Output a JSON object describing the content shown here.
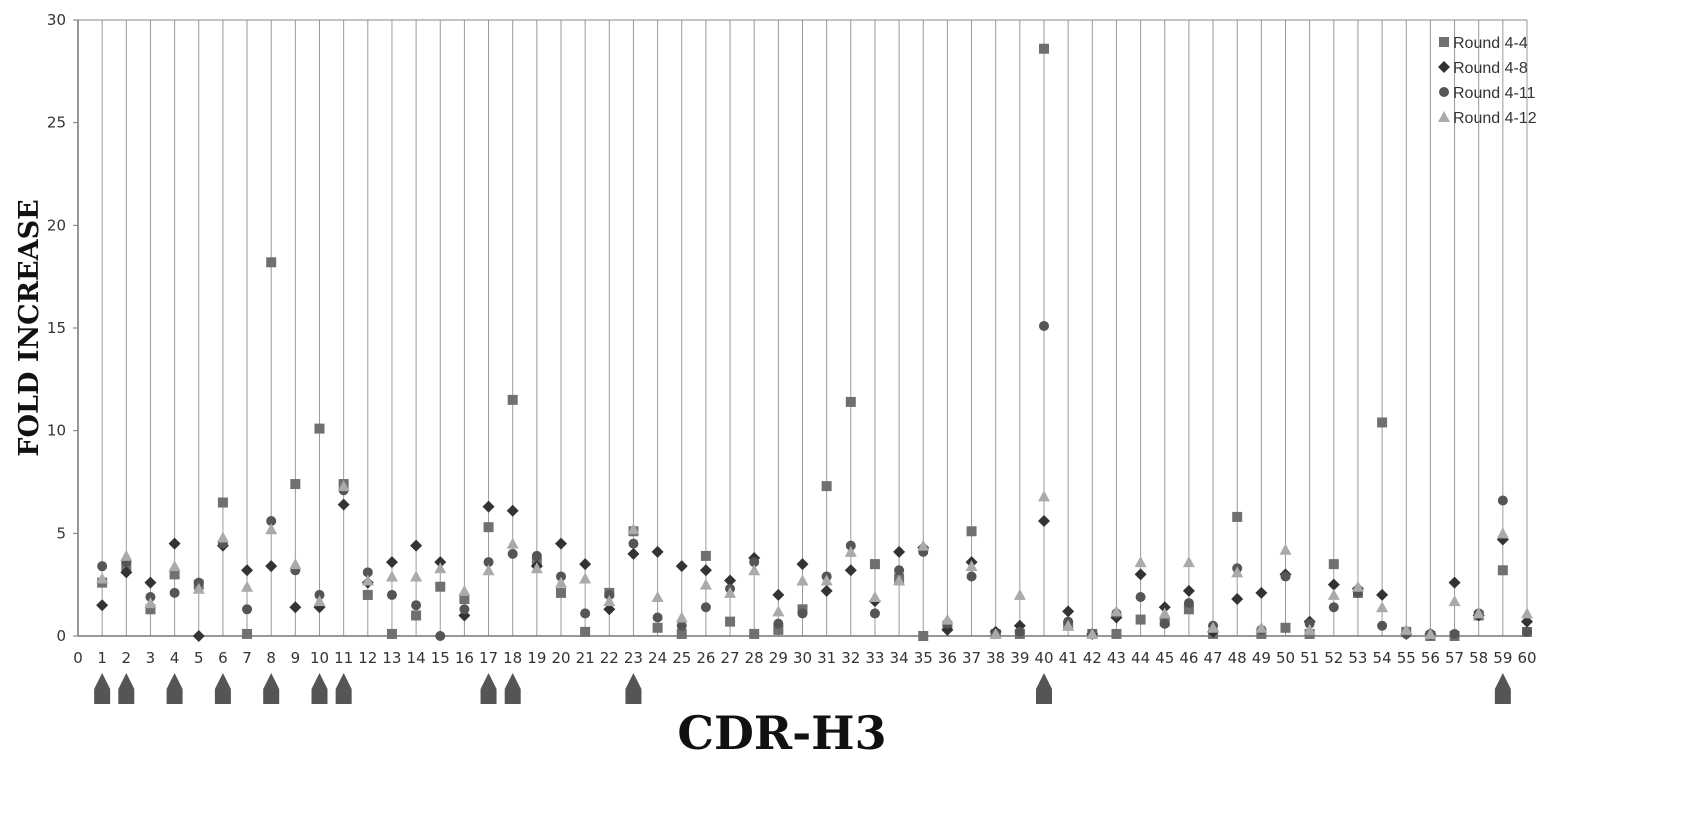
{
  "chart_data": {
    "type": "scatter",
    "xlabel": "CDR-H3",
    "ylabel": "FOLD INCREASE",
    "xlim": [
      0,
      60
    ],
    "ylim": [
      0,
      30
    ],
    "x_ticks": [
      0,
      1,
      2,
      3,
      4,
      5,
      6,
      7,
      8,
      9,
      10,
      11,
      12,
      13,
      14,
      15,
      16,
      17,
      18,
      19,
      20,
      21,
      22,
      23,
      24,
      25,
      26,
      27,
      28,
      29,
      30,
      31,
      32,
      33,
      34,
      35,
      36,
      37,
      38,
      39,
      40,
      41,
      42,
      43,
      44,
      45,
      46,
      47,
      48,
      49,
      50,
      51,
      52,
      53,
      54,
      55,
      56,
      57,
      58,
      59,
      60
    ],
    "y_ticks": [
      0,
      5,
      10,
      15,
      20,
      25,
      30
    ],
    "grid": "vertical",
    "legend_position": "top-right",
    "marked_positions": [
      1,
      2,
      4,
      6,
      8,
      10,
      11,
      17,
      18,
      23,
      40,
      59
    ],
    "series": [
      {
        "name": "Round 4-4",
        "color": "#707070",
        "marker": "square",
        "x": [
          1,
          2,
          3,
          4,
          5,
          6,
          7,
          8,
          9,
          10,
          11,
          12,
          13,
          14,
          15,
          16,
          17,
          18,
          19,
          20,
          21,
          22,
          23,
          24,
          25,
          26,
          27,
          28,
          29,
          30,
          31,
          32,
          33,
          34,
          35,
          36,
          37,
          38,
          39,
          40,
          41,
          42,
          43,
          44,
          45,
          46,
          47,
          48,
          49,
          50,
          51,
          52,
          53,
          54,
          55,
          56,
          57,
          58,
          59,
          60
        ],
        "y": [
          2.6,
          3.4,
          1.3,
          3.0,
          2.5,
          6.5,
          0.1,
          18.2,
          7.4,
          10.1,
          7.4,
          2.0,
          0.1,
          1.0,
          2.4,
          1.8,
          5.3,
          11.5,
          3.6,
          2.1,
          0.2,
          2.1,
          5.1,
          0.4,
          0.1,
          3.9,
          0.7,
          0.1,
          0.3,
          1.3,
          7.3,
          11.4,
          3.5,
          2.8,
          0.0,
          0.5,
          5.1,
          0.1,
          0.1,
          28.6,
          0.5,
          0.1,
          0.1,
          0.8,
          0.7,
          1.3,
          0.1,
          5.8,
          0.1,
          0.4,
          0.1,
          3.5,
          2.1,
          10.4,
          0.2,
          0.0,
          0.0,
          1.0,
          3.2,
          0.2
        ]
      },
      {
        "name": "Round 4-8",
        "color": "#333333",
        "marker": "diamond",
        "x": [
          1,
          2,
          3,
          4,
          5,
          6,
          7,
          8,
          9,
          10,
          11,
          12,
          13,
          14,
          15,
          16,
          17,
          18,
          19,
          20,
          21,
          22,
          23,
          24,
          25,
          26,
          27,
          28,
          29,
          30,
          31,
          32,
          33,
          34,
          35,
          36,
          37,
          38,
          39,
          40,
          41,
          42,
          43,
          44,
          45,
          46,
          47,
          48,
          49,
          50,
          51,
          52,
          53,
          54,
          55,
          56,
          57,
          58,
          59,
          60
        ],
        "y": [
          1.5,
          3.1,
          2.6,
          4.5,
          0.0,
          4.4,
          3.2,
          3.4,
          1.4,
          1.4,
          6.4,
          2.6,
          3.6,
          4.4,
          3.6,
          1.0,
          6.3,
          6.1,
          3.4,
          4.5,
          3.5,
          1.3,
          4.0,
          4.1,
          3.4,
          3.2,
          2.7,
          3.8,
          2.0,
          3.5,
          2.2,
          3.2,
          1.7,
          4.1,
          4.3,
          0.3,
          3.6,
          0.2,
          0.5,
          5.6,
          1.2,
          0.1,
          0.9,
          3.0,
          1.4,
          2.2,
          0.2,
          1.8,
          2.1,
          3.0,
          0.7,
          2.5,
          2.3,
          2.0,
          0.1,
          0.1,
          2.6,
          1.0,
          4.7,
          0.7
        ]
      },
      {
        "name": "Round 4-11",
        "color": "#555555",
        "marker": "circle",
        "x": [
          1,
          2,
          3,
          4,
          5,
          6,
          7,
          8,
          9,
          10,
          11,
          12,
          13,
          14,
          15,
          16,
          17,
          18,
          19,
          20,
          21,
          22,
          23,
          24,
          25,
          26,
          27,
          28,
          29,
          30,
          31,
          32,
          33,
          34,
          35,
          36,
          37,
          38,
          39,
          40,
          41,
          42,
          43,
          44,
          45,
          46,
          47,
          48,
          49,
          50,
          51,
          52,
          53,
          54,
          55,
          56,
          57,
          58,
          59,
          60
        ],
        "y": [
          3.4,
          3.6,
          1.9,
          2.1,
          2.6,
          4.5,
          1.3,
          5.6,
          3.2,
          2.0,
          7.1,
          3.1,
          2.0,
          1.5,
          0.0,
          1.3,
          3.6,
          4.0,
          3.9,
          2.9,
          1.1,
          2.0,
          4.5,
          0.9,
          0.5,
          1.4,
          2.3,
          3.6,
          0.6,
          1.1,
          2.9,
          4.4,
          1.1,
          3.2,
          4.1,
          0.6,
          2.9,
          0.1,
          0.2,
          15.1,
          0.7,
          0.1,
          1.1,
          1.9,
          0.6,
          1.6,
          0.5,
          3.3,
          0.3,
          2.9,
          0.6,
          1.4,
          2.1,
          0.5,
          0.1,
          0.1,
          0.1,
          1.1,
          6.6,
          0.2
        ]
      },
      {
        "name": "Round 4-12",
        "color": "#aaaaaa",
        "marker": "triangle",
        "x": [
          1,
          2,
          3,
          4,
          5,
          6,
          7,
          8,
          9,
          10,
          11,
          12,
          13,
          14,
          15,
          16,
          17,
          18,
          19,
          20,
          21,
          22,
          23,
          24,
          25,
          26,
          27,
          28,
          29,
          30,
          31,
          32,
          33,
          34,
          35,
          36,
          37,
          38,
          39,
          40,
          41,
          42,
          43,
          44,
          45,
          46,
          47,
          48,
          49,
          50,
          51,
          52,
          53,
          54,
          55,
          56,
          57,
          58,
          59,
          60
        ],
        "y": [
          2.8,
          3.9,
          1.6,
          3.4,
          2.3,
          4.8,
          2.4,
          5.2,
          3.5,
          1.7,
          7.3,
          2.7,
          2.9,
          2.9,
          3.3,
          2.2,
          3.2,
          4.5,
          3.3,
          2.6,
          2.8,
          1.7,
          5.2,
          1.9,
          0.9,
          2.5,
          2.1,
          3.2,
          1.2,
          2.7,
          2.7,
          4.1,
          1.9,
          2.7,
          4.4,
          0.8,
          3.4,
          0.1,
          2.0,
          6.8,
          0.5,
          0.1,
          1.2,
          3.6,
          1.1,
          3.6,
          0.4,
          3.1,
          0.4,
          4.2,
          0.3,
          2.0,
          2.4,
          1.4,
          0.3,
          0.1,
          1.7,
          1.1,
          5.0,
          1.1
        ]
      }
    ]
  }
}
